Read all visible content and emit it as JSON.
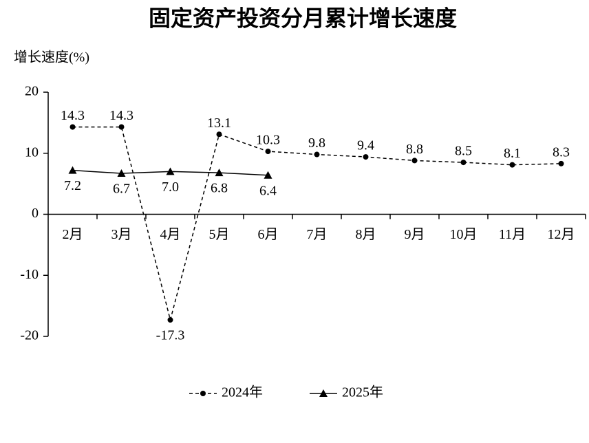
{
  "chart_data": {
    "type": "line",
    "title": "固定资产投资分月累计增长速度",
    "y_label": "增长速度(%)",
    "categories": [
      "2月",
      "3月",
      "4月",
      "5月",
      "6月",
      "7月",
      "8月",
      "9月",
      "10月",
      "11月",
      "12月"
    ],
    "ylim": [
      -20,
      20
    ],
    "yticks": [
      -20,
      -10,
      0,
      10,
      20
    ],
    "grid": false,
    "series": [
      {
        "name": "2024年",
        "color": "#000000",
        "dashed": true,
        "marker": "circle",
        "label_position": "above",
        "values": [
          14.3,
          14.3,
          -17.3,
          13.1,
          10.3,
          9.8,
          9.4,
          8.8,
          8.5,
          8.1,
          8.3
        ],
        "value_labels": [
          "14.3",
          "14.3",
          "-17.3",
          "13.1",
          "10.3",
          "9.8",
          "9.4",
          "8.8",
          "8.5",
          "8.1",
          "8.3"
        ]
      },
      {
        "name": "2025年",
        "color": "#000000",
        "dashed": false,
        "marker": "triangle",
        "label_position": "below",
        "values": [
          7.2,
          6.7,
          7.0,
          6.8,
          6.4,
          null,
          null,
          null,
          null,
          null,
          null
        ],
        "value_labels": [
          "7.2",
          "6.7",
          "7.0",
          "6.8",
          "6.4",
          null,
          null,
          null,
          null,
          null,
          null
        ]
      }
    ],
    "legend": "bottom"
  }
}
